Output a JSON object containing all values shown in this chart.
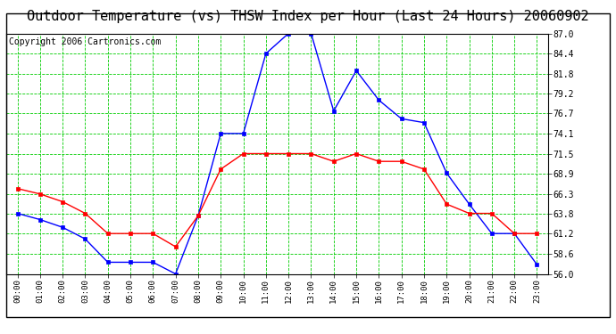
{
  "title": "Outdoor Temperature (vs) THSW Index per Hour (Last 24 Hours) 20060902",
  "copyright": "Copyright 2006 Cartronics.com",
  "hours": [
    0,
    1,
    2,
    3,
    4,
    5,
    6,
    7,
    8,
    9,
    10,
    11,
    12,
    13,
    14,
    15,
    16,
    17,
    18,
    19,
    20,
    21,
    22,
    23
  ],
  "hour_labels": [
    "00:00",
    "01:00",
    "02:00",
    "03:00",
    "04:00",
    "05:00",
    "06:00",
    "07:00",
    "08:00",
    "09:00",
    "10:00",
    "11:00",
    "12:00",
    "13:00",
    "14:00",
    "15:00",
    "16:00",
    "17:00",
    "18:00",
    "19:00",
    "20:00",
    "21:00",
    "22:00",
    "23:00"
  ],
  "blue_thsw": [
    63.8,
    63.0,
    62.0,
    60.5,
    57.5,
    57.5,
    57.5,
    56.0,
    63.5,
    74.1,
    74.1,
    84.4,
    87.0,
    87.0,
    77.0,
    82.2,
    78.4,
    76.0,
    75.5,
    69.0,
    65.0,
    61.2,
    61.2,
    57.2
  ],
  "red_temp": [
    67.0,
    66.3,
    65.3,
    63.8,
    61.2,
    61.2,
    61.2,
    59.5,
    63.5,
    69.5,
    71.5,
    71.5,
    71.5,
    71.5,
    70.5,
    71.5,
    70.5,
    70.5,
    69.5,
    65.0,
    63.8,
    63.8,
    61.2,
    61.2
  ],
  "ylim": [
    56.0,
    87.0
  ],
  "yticks": [
    56.0,
    58.6,
    61.2,
    63.8,
    66.3,
    68.9,
    71.5,
    74.1,
    76.7,
    79.2,
    81.8,
    84.4,
    87.0
  ],
  "blue_color": "#0000FF",
  "red_color": "#FF0000",
  "bg_color": "#FFFFFF",
  "plot_bg_color": "#FFFFFF",
  "grid_color": "#00CC00",
  "title_color": "#000000",
  "title_fontsize": 11,
  "copyright_fontsize": 7
}
